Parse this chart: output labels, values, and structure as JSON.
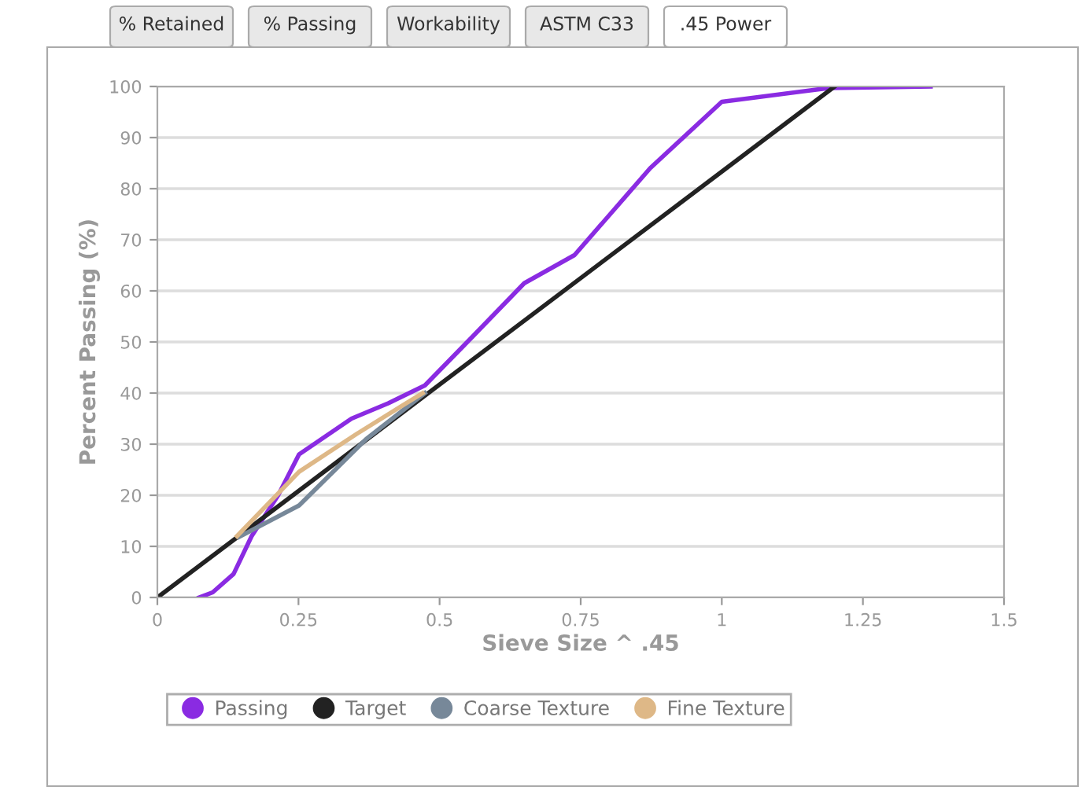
{
  "chart_data": {
    "type": "line",
    "xlabel": "Sieve Size ^ .45",
    "ylabel": "Percent Passing (%)",
    "annotations": [
      "% Retained",
      "% Passing",
      "Workability",
      "ASTM C33",
      ".45 Power"
    ],
    "xlim": [
      0,
      1.5
    ],
    "xticks": [
      0,
      0.25,
      0.5,
      0.75,
      1,
      1.25,
      1.5
    ],
    "ylim": [
      0,
      100
    ],
    "yticks": [
      0,
      10,
      20,
      30,
      40,
      50,
      60,
      70,
      80,
      90,
      100
    ],
    "grid": "y",
    "legend": "bottom",
    "series": [
      {
        "name": "Passing",
        "color": "#8a2be2",
        "x": [
          0.074,
          0.098,
          0.135,
          0.167,
          0.214,
          0.251,
          0.344,
          0.409,
          0.474,
          0.558,
          0.65,
          0.739,
          0.81,
          0.873,
          1.0,
          1.19,
          1.37
        ],
        "values": [
          0,
          1,
          4.6,
          12,
          20,
          28,
          35,
          38,
          41.5,
          51,
          61.5,
          67,
          76,
          84,
          97,
          99.7,
          100
        ]
      },
      {
        "name": "Target",
        "color": "#222222",
        "x": [
          0,
          1.2
        ],
        "values": [
          0,
          100
        ]
      },
      {
        "name": "Coarse Texture",
        "color": "#778899",
        "x": [
          0.144,
          0.251,
          0.37,
          0.474
        ],
        "values": [
          11.8,
          18,
          31,
          40
        ]
      },
      {
        "name": "Fine Texture",
        "color": "#deb887",
        "x": [
          0.141,
          0.251,
          0.353,
          0.47
        ],
        "values": [
          12,
          24.6,
          32,
          40
        ]
      }
    ]
  }
}
